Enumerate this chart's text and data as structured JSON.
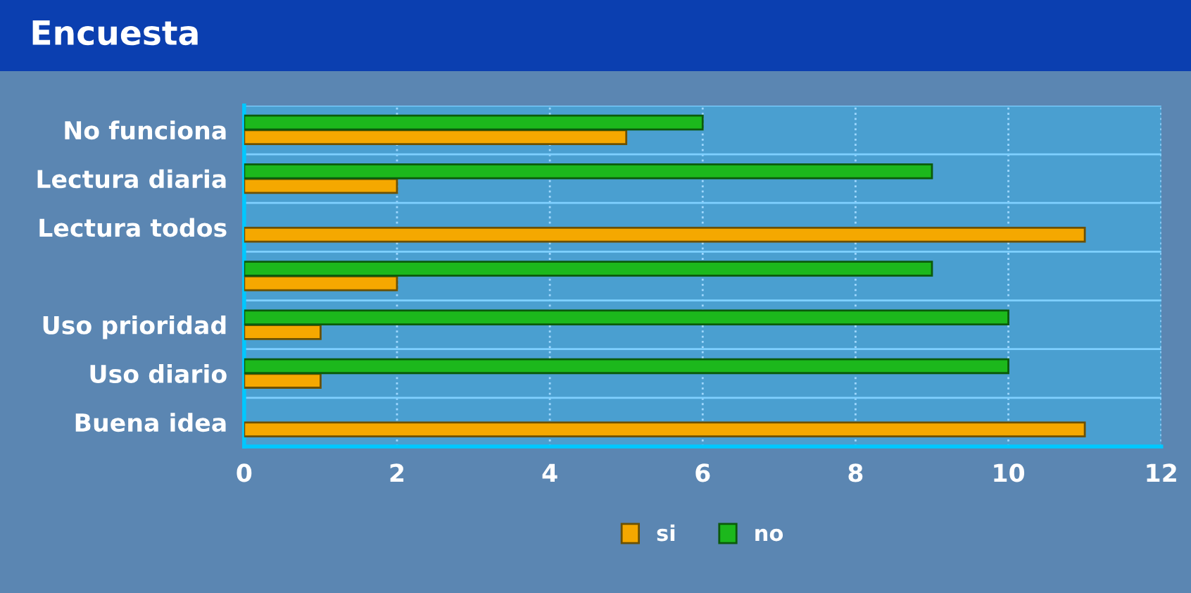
{
  "chart_data": {
    "type": "bar",
    "orientation": "horizontal",
    "title": "Encuesta",
    "categories": [
      "No funciona",
      "Lectura diaria",
      "Lectura todos",
      null,
      "Uso prioridad",
      "Uso diario",
      "Buena idea"
    ],
    "series": [
      {
        "name": "si",
        "color": "#f5a800",
        "values": [
          5,
          2,
          11,
          2,
          1,
          1,
          11
        ]
      },
      {
        "name": "no",
        "color": "#1cb81c",
        "values": [
          6,
          9,
          null,
          9,
          10,
          10,
          null
        ]
      }
    ],
    "xlim": [
      0,
      12
    ],
    "xticks": [
      0,
      2,
      4,
      6,
      8,
      10,
      12
    ],
    "grid": true,
    "legend": "bottom"
  }
}
